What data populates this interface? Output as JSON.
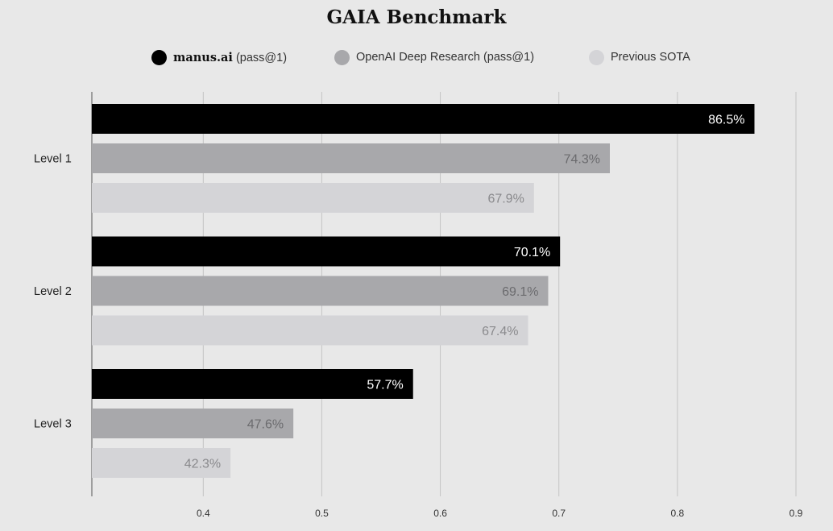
{
  "chart_data": {
    "type": "bar",
    "orientation": "horizontal",
    "title": "GAIA Benchmark",
    "categories": [
      "Level 1",
      "Level 2",
      "Level 3"
    ],
    "series": [
      {
        "name": "manus.ai (pass@1)",
        "name_strong": "manus.ai",
        "name_rest": "(pass@1)",
        "color": "#000000",
        "label_color": "#ffffff",
        "values": [
          0.865,
          0.701,
          0.577
        ],
        "labels": [
          "86.5%",
          "70.1%",
          "57.7%"
        ]
      },
      {
        "name": "OpenAI Deep Research (pass@1)",
        "color": "#a8a8ab",
        "label_color": "#6b6b6e",
        "values": [
          0.743,
          0.691,
          0.476
        ],
        "labels": [
          "74.3%",
          "69.1%",
          "47.6%"
        ]
      },
      {
        "name": "Previous SOTA",
        "color": "#d4d4d7",
        "label_color": "#8a8a8d",
        "values": [
          0.679,
          0.674,
          0.423
        ],
        "labels": [
          "67.9%",
          "67.4%",
          "42.3%"
        ]
      }
    ],
    "xlim": [
      0.306,
      0.9
    ],
    "xticks": [
      0.4,
      0.5,
      0.6,
      0.7,
      0.8,
      0.9
    ],
    "xtick_labels": [
      "0.4",
      "0.5",
      "0.6",
      "0.7",
      "0.8",
      "0.9"
    ],
    "grid": true,
    "legend_position": "top-center"
  }
}
